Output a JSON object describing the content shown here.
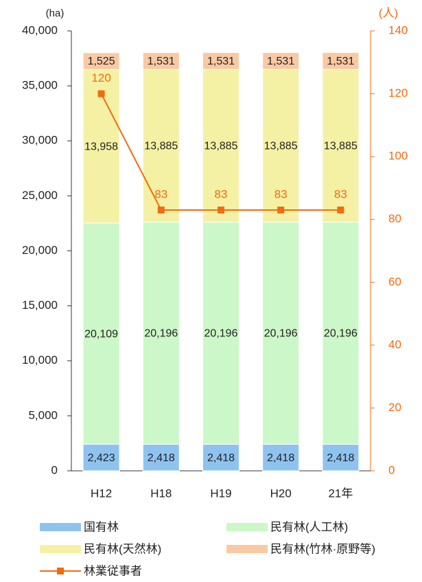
{
  "chart_data": {
    "type": "bar",
    "y_unit": "(ha)",
    "y2_unit": "(人)",
    "categories": [
      "H12",
      "H18",
      "H19",
      "H20",
      "21年"
    ],
    "stacked": true,
    "series": [
      {
        "name": "国有林",
        "color": "#8ec3f0",
        "values": [
          2423,
          2418,
          2418,
          2418,
          2418
        ],
        "value_labels": [
          "2,423",
          "2,418",
          "2,418",
          "2,418",
          "2,418"
        ]
      },
      {
        "name": "民有林(人工林)",
        "color": "#ccf7c8",
        "values": [
          20109,
          20196,
          20196,
          20196,
          20196
        ],
        "value_labels": [
          "20,109",
          "20,196",
          "20,196",
          "20,196",
          "20,196"
        ]
      },
      {
        "name": "民有林(天然林)",
        "color": "#f4f1a4",
        "values": [
          13958,
          13885,
          13885,
          13885,
          13885
        ],
        "value_labels": [
          "13,958",
          "13,885",
          "13,885",
          "13,885",
          "13,885"
        ]
      },
      {
        "name": "民有林(竹林·原野等)",
        "color": "#f9c9a4",
        "values": [
          1525,
          1531,
          1531,
          1531,
          1531
        ],
        "value_labels": [
          "1,525",
          "1,531",
          "1,531",
          "1,531",
          "1,531"
        ]
      },
      {
        "name": "林業従事者",
        "type": "line",
        "axis": "y2",
        "color": "#f26b10",
        "values": [
          120,
          83,
          83,
          83,
          83
        ]
      }
    ],
    "ylim": [
      0,
      40000
    ],
    "yticks": [
      0,
      {
        "value": 5000,
        "label": "5,000"
      },
      {
        "value": 10000,
        "label": "10,000"
      },
      {
        "value": 15000,
        "label": "15,000"
      },
      {
        "value": 20000,
        "label": "20,000"
      },
      {
        "value": 25000,
        "label": "25,000"
      },
      {
        "value": 30000,
        "label": "30,000"
      },
      {
        "value": 35000,
        "label": "35,000"
      },
      {
        "value": 40000,
        "label": "40,000"
      }
    ],
    "y2lim": [
      0,
      140
    ],
    "y2ticks": [
      0,
      20,
      40,
      60,
      80,
      100,
      120,
      140
    ],
    "legend": "bottom"
  }
}
